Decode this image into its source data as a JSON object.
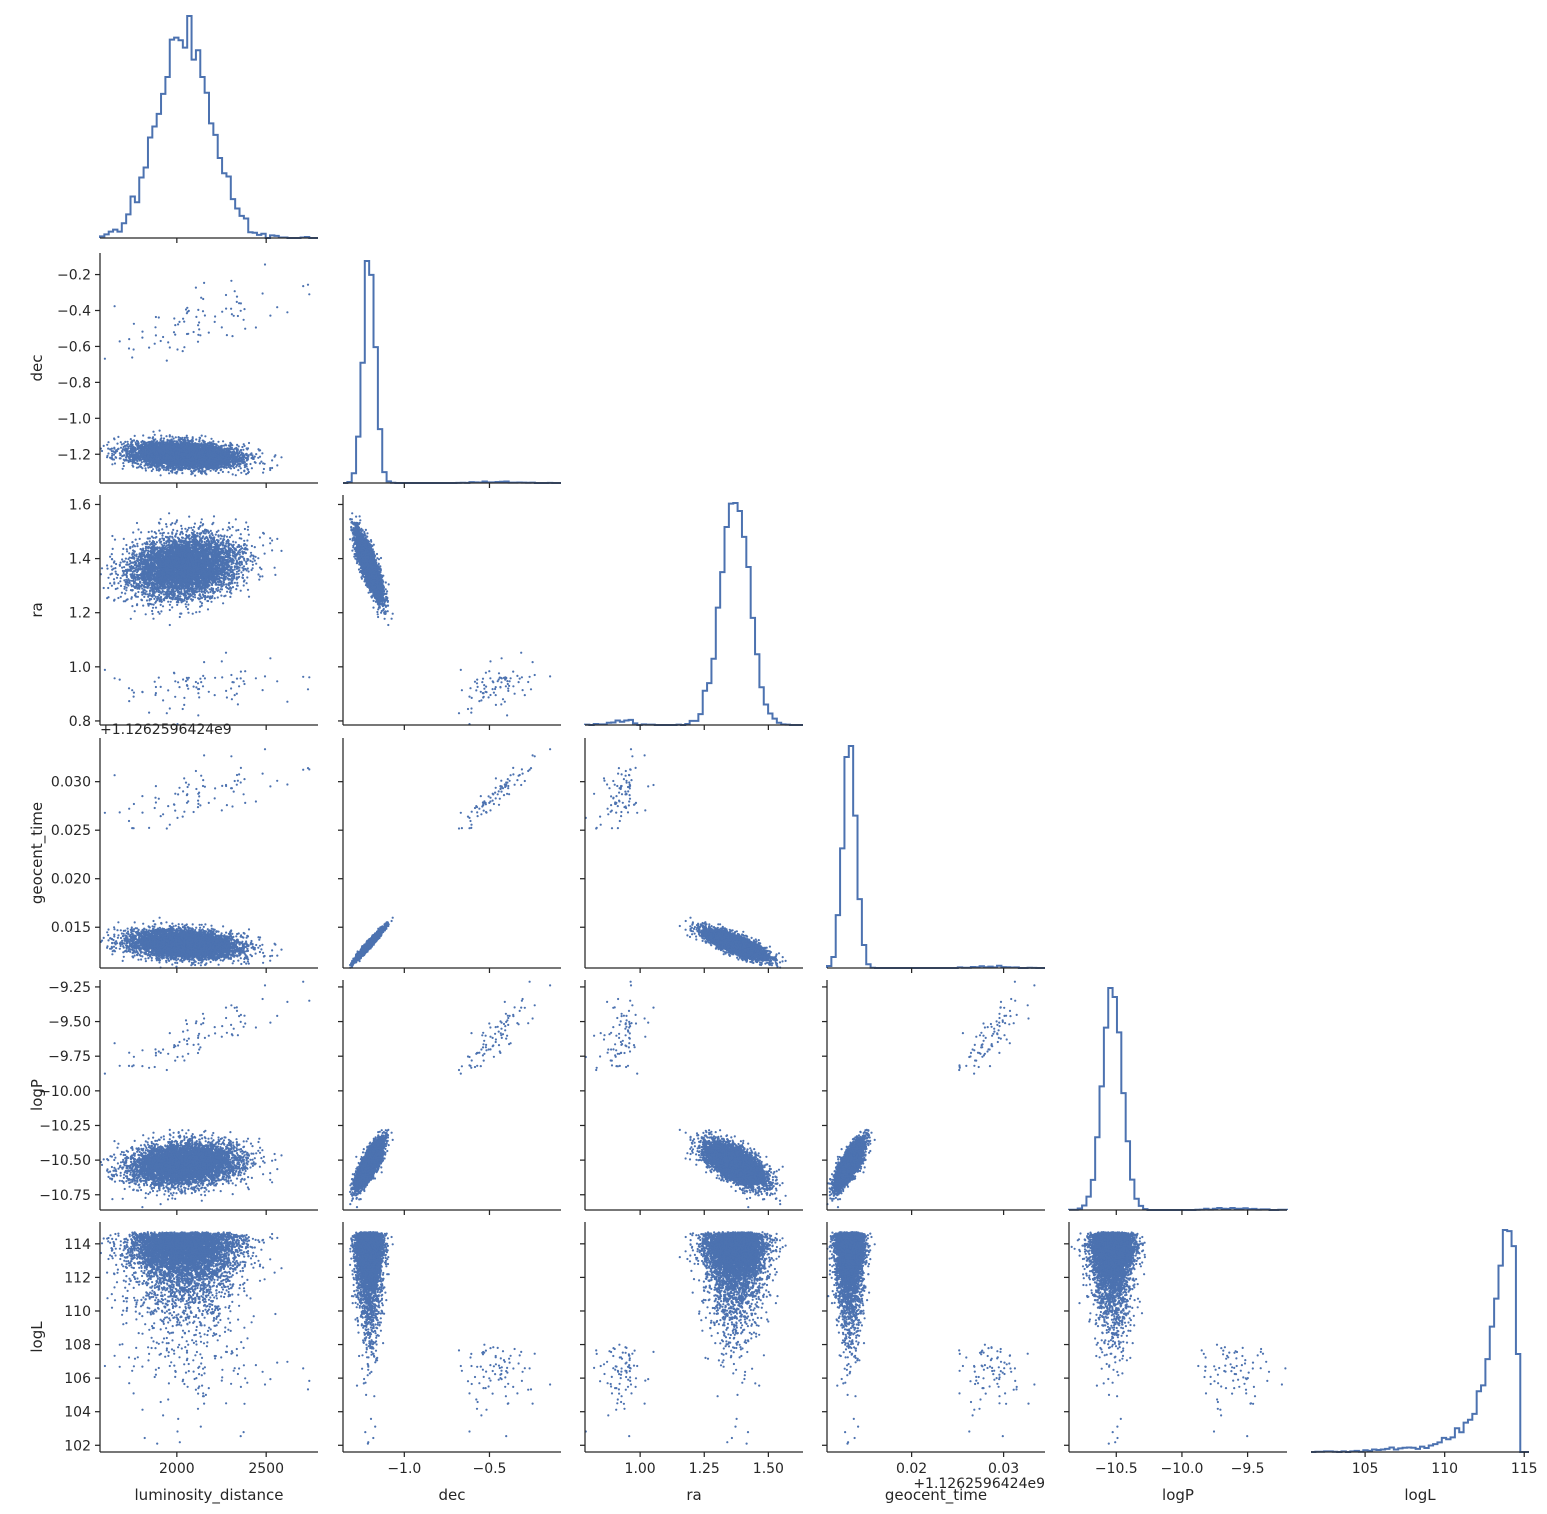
{
  "chart_data": {
    "type": "scatter",
    "layout": "corner pair plot",
    "variables": [
      "luminosity_distance",
      "dec",
      "ra",
      "geocent_time",
      "logP",
      "logL"
    ],
    "offsets": {
      "geocent_time": "+1.1262596424e9"
    },
    "color": "#4c72b0",
    "ranges": {
      "luminosity_distance": [
        1570,
        2790
      ],
      "dec": [
        -1.36,
        -0.08
      ],
      "ra": [
        0.785,
        1.635
      ],
      "geocent_time": [
        0.0108,
        0.0345
      ],
      "logP": [
        -10.86,
        -9.2
      ],
      "logL": [
        101.6,
        115.3
      ]
    },
    "ticks": {
      "luminosity_distance": [
        2000,
        2500
      ],
      "dec": [
        -1.0,
        -0.5
      ],
      "ra": [
        1.0,
        1.25,
        1.5
      ],
      "geocent_time": [
        0.02,
        0.03
      ],
      "logP": [
        -10.5,
        -10.0,
        -9.5
      ],
      "logL": [
        105,
        110,
        115
      ]
    },
    "y_ticks": {
      "dec": [
        -1.2,
        -1.0,
        -0.8,
        -0.6,
        -0.4,
        -0.2
      ],
      "ra": [
        0.8,
        1.0,
        1.2,
        1.4,
        1.6
      ],
      "geocent_time": [
        0.015,
        0.02,
        0.025,
        0.03
      ],
      "logP": [
        -10.75,
        -10.5,
        -10.25,
        -10.0,
        -9.75,
        -9.5,
        -9.25
      ],
      "logL": [
        102,
        104,
        106,
        108,
        110,
        112,
        114
      ]
    },
    "tick_labels": {
      "luminosity_distance": [
        "2000",
        "2500"
      ],
      "dec": [
        "−1.0",
        "−0.5"
      ],
      "ra": [
        "1.00",
        "1.25",
        "1.50"
      ],
      "geocent_time": [
        "0.02",
        "0.03"
      ],
      "logP": [
        "−10.5",
        "−10.0",
        "−9.5"
      ],
      "logL": [
        "105",
        "110",
        "115"
      ]
    },
    "y_tick_labels": {
      "dec": [
        "−1.2",
        "−1.0",
        "−0.8",
        "−0.6",
        "−0.4",
        "−0.2"
      ],
      "ra": [
        "0.8",
        "1.0",
        "1.2",
        "1.4",
        "1.6"
      ],
      "geocent_time": [
        "0.015",
        "0.020",
        "0.025",
        "0.030"
      ],
      "logP": [
        "−10.75",
        "−10.50",
        "−10.25",
        "−10.00",
        "−9.75",
        "−9.50",
        "−9.25"
      ],
      "logL": [
        "102",
        "104",
        "106",
        "108",
        "110",
        "112",
        "114"
      ]
    },
    "modes": {
      "main": {
        "weight": 0.985,
        "mean": {
          "luminosity_distance": 2040,
          "dec": -1.205,
          "ra": 1.37,
          "geocent_time": 0.01325,
          "logP": -10.53
        },
        "sd": {
          "luminosity_distance": 150,
          "dec": 0.035,
          "ra": 0.055,
          "geocent_time": 0.0007,
          "logP": 0.08
        }
      },
      "secondary": {
        "weight": 0.015,
        "mean": {
          "luminosity_distance": 2150,
          "dec": -0.45,
          "ra": 0.93,
          "geocent_time": 0.0288,
          "logP": -9.6
        },
        "sd": {
          "luminosity_distance": 250,
          "dec": 0.15,
          "ra": 0.05,
          "geocent_time": 0.0025,
          "logP": 0.16
        }
      }
    },
    "logL_peak": 114.7,
    "hist_bins": 50,
    "n_samples": 6000,
    "grid": false,
    "legend": "none"
  }
}
